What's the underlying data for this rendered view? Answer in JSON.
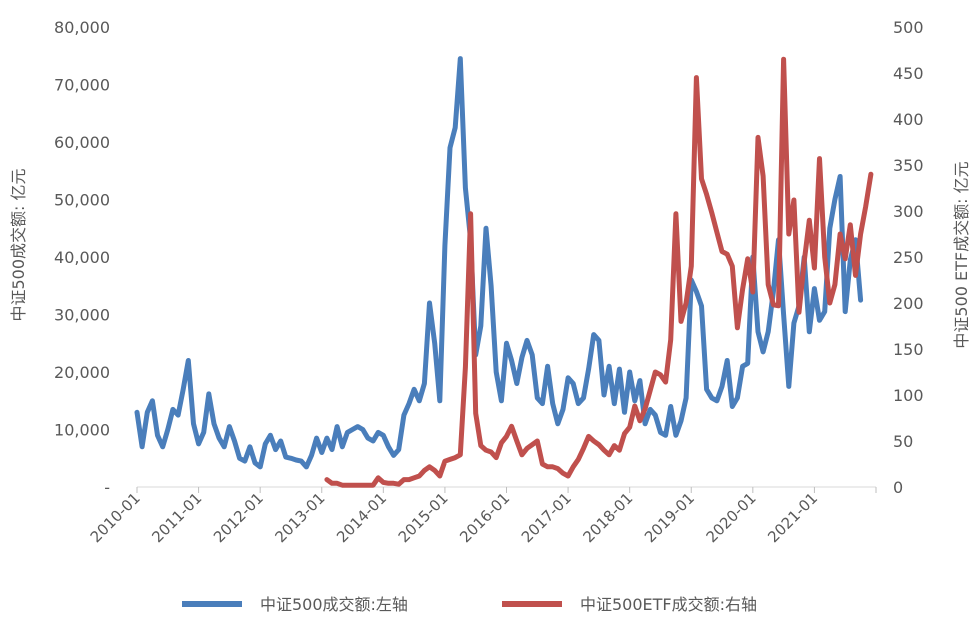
{
  "chart_data": {
    "type": "line",
    "title": "",
    "ylabel_left": "中证500成交额: 亿元",
    "ylabel_right": "中证500 ETF成交额: 亿元",
    "left_axis": {
      "ylim": [
        0,
        80000
      ],
      "ticks": [
        0,
        10000,
        20000,
        30000,
        40000,
        50000,
        60000,
        70000,
        80000
      ],
      "tick_labels": [
        "-",
        "10,000",
        "20,000",
        "30,000",
        "40,000",
        "50,000",
        "60,000",
        "70,000",
        "80,000"
      ]
    },
    "right_axis": {
      "ylim": [
        0,
        500
      ],
      "ticks": [
        0,
        50,
        100,
        150,
        200,
        250,
        300,
        350,
        400,
        450,
        500
      ],
      "tick_labels": [
        "0",
        "50",
        "100",
        "150",
        "200",
        "250",
        "300",
        "350",
        "400",
        "450",
        "500"
      ]
    },
    "x_axis": {
      "range": [
        "2010-01",
        "2022-01"
      ],
      "tick_labels": [
        "2010-01",
        "2011-01",
        "2012-01",
        "2013-01",
        "2014-01",
        "2015-01",
        "2016-01",
        "2017-01",
        "2018-01",
        "2019-01",
        "2020-01",
        "2021-01"
      ]
    },
    "grid": false,
    "legend": "bottom",
    "series": [
      {
        "name": "中证500成交额:左轴",
        "axis": "left",
        "color": "#4a7ebb",
        "points": [
          [
            "2010-01",
            13000
          ],
          [
            "2010-02",
            7000
          ],
          [
            "2010-03",
            13000
          ],
          [
            "2010-04",
            15000
          ],
          [
            "2010-05",
            9000
          ],
          [
            "2010-06",
            7000
          ],
          [
            "2010-07",
            10000
          ],
          [
            "2010-08",
            13500
          ],
          [
            "2010-09",
            12500
          ],
          [
            "2010-10",
            17000
          ],
          [
            "2010-11",
            22000
          ],
          [
            "2010-12",
            11000
          ],
          [
            "2011-01",
            7500
          ],
          [
            "2011-02",
            9500
          ],
          [
            "2011-03",
            16200
          ],
          [
            "2011-04",
            11000
          ],
          [
            "2011-05",
            8500
          ],
          [
            "2011-06",
            7000
          ],
          [
            "2011-07",
            10500
          ],
          [
            "2011-08",
            8000
          ],
          [
            "2011-09",
            5000
          ],
          [
            "2011-10",
            4500
          ],
          [
            "2011-11",
            7000
          ],
          [
            "2011-12",
            4200
          ],
          [
            "2012-01",
            3500
          ],
          [
            "2012-02",
            7500
          ],
          [
            "2012-03",
            9000
          ],
          [
            "2012-04",
            6500
          ],
          [
            "2012-05",
            8000
          ],
          [
            "2012-06",
            5200
          ],
          [
            "2012-07",
            5000
          ],
          [
            "2012-08",
            4700
          ],
          [
            "2012-09",
            4500
          ],
          [
            "2012-10",
            3500
          ],
          [
            "2012-11",
            5500
          ],
          [
            "2012-12",
            8500
          ],
          [
            "2013-01",
            6000
          ],
          [
            "2013-02",
            8500
          ],
          [
            "2013-03",
            6500
          ],
          [
            "2013-04",
            10500
          ],
          [
            "2013-05",
            7000
          ],
          [
            "2013-06",
            9500
          ],
          [
            "2013-07",
            10000
          ],
          [
            "2013-08",
            10500
          ],
          [
            "2013-09",
            10000
          ],
          [
            "2013-10",
            8500
          ],
          [
            "2013-11",
            8000
          ],
          [
            "2013-12",
            9500
          ],
          [
            "2014-01",
            9000
          ],
          [
            "2014-02",
            7000
          ],
          [
            "2014-03",
            5500
          ],
          [
            "2014-04",
            6500
          ],
          [
            "2014-05",
            12500
          ],
          [
            "2014-06",
            14500
          ],
          [
            "2014-07",
            17000
          ],
          [
            "2014-08",
            15000
          ],
          [
            "2014-09",
            18000
          ],
          [
            "2014-10",
            32000
          ],
          [
            "2014-11",
            25000
          ],
          [
            "2014-12",
            15000
          ],
          [
            "2015-01",
            42000
          ],
          [
            "2015-02",
            59000
          ],
          [
            "2015-03",
            62500
          ],
          [
            "2015-04",
            74500
          ],
          [
            "2015-05",
            52000
          ],
          [
            "2015-06",
            43000
          ],
          [
            "2015-07",
            23000
          ],
          [
            "2015-08",
            28000
          ],
          [
            "2015-09",
            45000
          ],
          [
            "2015-10",
            35000
          ],
          [
            "2015-11",
            20000
          ],
          [
            "2015-12",
            15000
          ],
          [
            "2016-01",
            25000
          ],
          [
            "2016-02",
            22000
          ],
          [
            "2016-03",
            18000
          ],
          [
            "2016-04",
            22500
          ],
          [
            "2016-05",
            25500
          ],
          [
            "2016-06",
            23000
          ],
          [
            "2016-07",
            15500
          ],
          [
            "2016-08",
            14500
          ],
          [
            "2016-09",
            21000
          ],
          [
            "2016-10",
            14500
          ],
          [
            "2016-11",
            11000
          ],
          [
            "2016-12",
            13500
          ],
          [
            "2017-01",
            19000
          ],
          [
            "2017-02",
            18000
          ],
          [
            "2017-03",
            14500
          ],
          [
            "2017-04",
            15500
          ],
          [
            "2017-05",
            20500
          ],
          [
            "2017-06",
            26500
          ],
          [
            "2017-07",
            25500
          ],
          [
            "2017-08",
            16000
          ],
          [
            "2017-09",
            21000
          ],
          [
            "2017-10",
            14500
          ],
          [
            "2017-11",
            20500
          ],
          [
            "2017-12",
            13000
          ],
          [
            "2018-01",
            20000
          ],
          [
            "2018-02",
            15000
          ],
          [
            "2018-03",
            18500
          ],
          [
            "2018-04",
            11000
          ],
          [
            "2018-05",
            13500
          ],
          [
            "2018-06",
            12500
          ],
          [
            "2018-07",
            9500
          ],
          [
            "2018-08",
            9000
          ],
          [
            "2018-09",
            14000
          ],
          [
            "2018-10",
            9000
          ],
          [
            "2018-11",
            11500
          ],
          [
            "2018-12",
            15500
          ],
          [
            "2019-01",
            36000
          ],
          [
            "2019-02",
            34000
          ],
          [
            "2019-03",
            31500
          ],
          [
            "2019-04",
            17000
          ],
          [
            "2019-05",
            15500
          ],
          [
            "2019-06",
            15000
          ],
          [
            "2019-07",
            17500
          ],
          [
            "2019-08",
            22000
          ],
          [
            "2019-09",
            14000
          ],
          [
            "2019-10",
            15500
          ],
          [
            "2019-11",
            21000
          ],
          [
            "2019-12",
            21500
          ],
          [
            "2020-01",
            40000
          ],
          [
            "2020-02",
            27000
          ],
          [
            "2020-03",
            23500
          ],
          [
            "2020-04",
            27000
          ],
          [
            "2020-05",
            34000
          ],
          [
            "2020-06",
            43000
          ],
          [
            "2020-07",
            30000
          ],
          [
            "2020-08",
            17500
          ],
          [
            "2020-09",
            28500
          ],
          [
            "2020-10",
            31500
          ],
          [
            "2020-11",
            40000
          ],
          [
            "2020-12",
            27000
          ],
          [
            "2021-01",
            34500
          ],
          [
            "2021-02",
            29000
          ],
          [
            "2021-03",
            30500
          ],
          [
            "2021-04",
            45000
          ],
          [
            "2021-05",
            50000
          ],
          [
            "2021-06",
            54000
          ],
          [
            "2021-07",
            30500
          ],
          [
            "2021-08",
            39500
          ],
          [
            "2021-09",
            43000
          ],
          [
            "2021-10",
            32500
          ]
        ]
      },
      {
        "name": "中证500ETF成交额:右轴",
        "axis": "right",
        "color": "#c0504d",
        "points": [
          [
            "2013-02",
            8
          ],
          [
            "2013-03",
            4
          ],
          [
            "2013-04",
            4
          ],
          [
            "2013-05",
            2
          ],
          [
            "2013-06",
            2
          ],
          [
            "2013-07",
            2
          ],
          [
            "2013-08",
            2
          ],
          [
            "2013-09",
            2
          ],
          [
            "2013-10",
            2
          ],
          [
            "2013-11",
            2
          ],
          [
            "2013-12",
            10
          ],
          [
            "2014-01",
            5
          ],
          [
            "2014-02",
            4
          ],
          [
            "2014-03",
            4
          ],
          [
            "2014-04",
            3
          ],
          [
            "2014-05",
            8
          ],
          [
            "2014-06",
            8
          ],
          [
            "2014-07",
            10
          ],
          [
            "2014-08",
            12
          ],
          [
            "2014-09",
            18
          ],
          [
            "2014-10",
            22
          ],
          [
            "2014-11",
            18
          ],
          [
            "2014-12",
            12
          ],
          [
            "2015-01",
            28
          ],
          [
            "2015-02",
            30
          ],
          [
            "2015-03",
            32
          ],
          [
            "2015-04",
            35
          ],
          [
            "2015-05",
            130
          ],
          [
            "2015-06",
            297
          ],
          [
            "2015-07",
            80
          ],
          [
            "2015-08",
            45
          ],
          [
            "2015-09",
            40
          ],
          [
            "2015-10",
            38
          ],
          [
            "2015-11",
            32
          ],
          [
            "2015-12",
            48
          ],
          [
            "2016-01",
            55
          ],
          [
            "2016-02",
            66
          ],
          [
            "2016-03",
            50
          ],
          [
            "2016-04",
            35
          ],
          [
            "2016-05",
            42
          ],
          [
            "2016-06",
            46
          ],
          [
            "2016-07",
            50
          ],
          [
            "2016-08",
            25
          ],
          [
            "2016-09",
            22
          ],
          [
            "2016-10",
            22
          ],
          [
            "2016-11",
            20
          ],
          [
            "2016-12",
            15
          ],
          [
            "2017-01",
            12
          ],
          [
            "2017-02",
            22
          ],
          [
            "2017-03",
            30
          ],
          [
            "2017-04",
            42
          ],
          [
            "2017-05",
            55
          ],
          [
            "2017-06",
            50
          ],
          [
            "2017-07",
            46
          ],
          [
            "2017-08",
            40
          ],
          [
            "2017-09",
            35
          ],
          [
            "2017-10",
            45
          ],
          [
            "2017-11",
            40
          ],
          [
            "2017-12",
            58
          ],
          [
            "2018-01",
            65
          ],
          [
            "2018-02",
            88
          ],
          [
            "2018-03",
            72
          ],
          [
            "2018-04",
            85
          ],
          [
            "2018-05",
            105
          ],
          [
            "2018-06",
            125
          ],
          [
            "2018-07",
            122
          ],
          [
            "2018-08",
            114
          ],
          [
            "2018-09",
            160
          ],
          [
            "2018-10",
            297
          ],
          [
            "2018-11",
            180
          ],
          [
            "2018-12",
            200
          ],
          [
            "2019-01",
            240
          ],
          [
            "2019-02",
            445
          ],
          [
            "2019-03",
            335
          ],
          [
            "2019-04",
            318
          ],
          [
            "2019-05",
            298
          ],
          [
            "2019-06",
            277
          ],
          [
            "2019-07",
            256
          ],
          [
            "2019-08",
            253
          ],
          [
            "2019-09",
            240
          ],
          [
            "2019-10",
            173
          ],
          [
            "2019-11",
            215
          ],
          [
            "2019-12",
            248
          ],
          [
            "2020-01",
            212
          ],
          [
            "2020-02",
            380
          ],
          [
            "2020-03",
            338
          ],
          [
            "2020-04",
            220
          ],
          [
            "2020-05",
            198
          ],
          [
            "2020-06",
            197
          ],
          [
            "2020-07",
            465
          ],
          [
            "2020-08",
            275
          ],
          [
            "2020-09",
            312
          ],
          [
            "2020-10",
            190
          ],
          [
            "2020-11",
            245
          ],
          [
            "2020-12",
            290
          ],
          [
            "2021-01",
            238
          ],
          [
            "2021-02",
            357
          ],
          [
            "2021-03",
            250
          ],
          [
            "2021-04",
            200
          ],
          [
            "2021-05",
            220
          ],
          [
            "2021-06",
            275
          ],
          [
            "2021-07",
            248
          ],
          [
            "2021-08",
            285
          ],
          [
            "2021-09",
            230
          ],
          [
            "2021-10",
            275
          ],
          [
            "2021-11",
            305
          ],
          [
            "2021-12",
            340
          ]
        ]
      }
    ]
  }
}
